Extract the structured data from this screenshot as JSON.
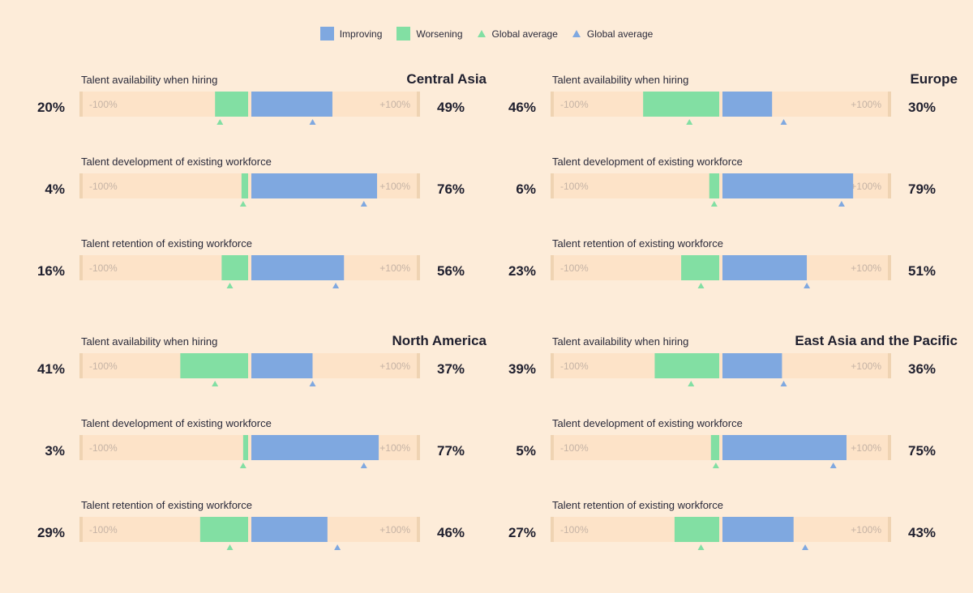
{
  "legend": {
    "improving": "Improving",
    "worsening": "Worsening",
    "global_avg_worsening": "Global average",
    "global_avg_improving": "Global average"
  },
  "colors": {
    "background": "#fdecd9",
    "track": "#fde3c8",
    "track_edge": "#efd3b2",
    "improving": "#7fa8e0",
    "worsening": "#82dfa3",
    "axis_label": "#c5b3a5"
  },
  "axis": {
    "min_label": "-100%",
    "max_label": "+100%"
  },
  "chart_data": [
    {
      "type": "bar",
      "title": "Central Asia",
      "categories": [
        "Talent availability when hiring",
        "Talent development of existing workforce",
        "Talent retention of existing workforce"
      ],
      "series": [
        {
          "name": "Worsening",
          "values": [
            20,
            4,
            16
          ]
        },
        {
          "name": "Improving",
          "values": [
            49,
            76,
            56
          ]
        }
      ],
      "global_average_worsening": [
        18,
        4,
        12
      ],
      "global_average_improving": [
        38,
        69,
        52
      ],
      "xlim": [
        -100,
        100
      ]
    },
    {
      "type": "bar",
      "title": "Europe",
      "categories": [
        "Talent availability when hiring",
        "Talent development of existing workforce",
        "Talent retention of existing workforce"
      ],
      "series": [
        {
          "name": "Worsening",
          "values": [
            46,
            6,
            23
          ]
        },
        {
          "name": "Improving",
          "values": [
            30,
            79,
            51
          ]
        }
      ],
      "global_average_worsening": [
        19,
        4,
        12
      ],
      "global_average_improving": [
        38,
        73,
        52
      ],
      "xlim": [
        -100,
        100
      ]
    },
    {
      "type": "bar",
      "title": "North America",
      "categories": [
        "Talent availability when hiring",
        "Talent development of existing workforce",
        "Talent retention of existing workforce"
      ],
      "series": [
        {
          "name": "Worsening",
          "values": [
            41,
            3,
            29
          ]
        },
        {
          "name": "Improving",
          "values": [
            37,
            77,
            46
          ]
        }
      ],
      "global_average_worsening": [
        21,
        4,
        12
      ],
      "global_average_improving": [
        38,
        69,
        53
      ],
      "xlim": [
        -100,
        100
      ]
    },
    {
      "type": "bar",
      "title": "East Asia and the Pacific",
      "categories": [
        "Talent availability when hiring",
        "Talent development of existing workforce",
        "Talent retention of existing workforce"
      ],
      "series": [
        {
          "name": "Worsening",
          "values": [
            39,
            5,
            27
          ]
        },
        {
          "name": "Improving",
          "values": [
            36,
            75,
            43
          ]
        }
      ],
      "global_average_worsening": [
        18,
        3,
        12
      ],
      "global_average_improving": [
        38,
        68,
        51
      ],
      "xlim": [
        -100,
        100
      ]
    }
  ]
}
